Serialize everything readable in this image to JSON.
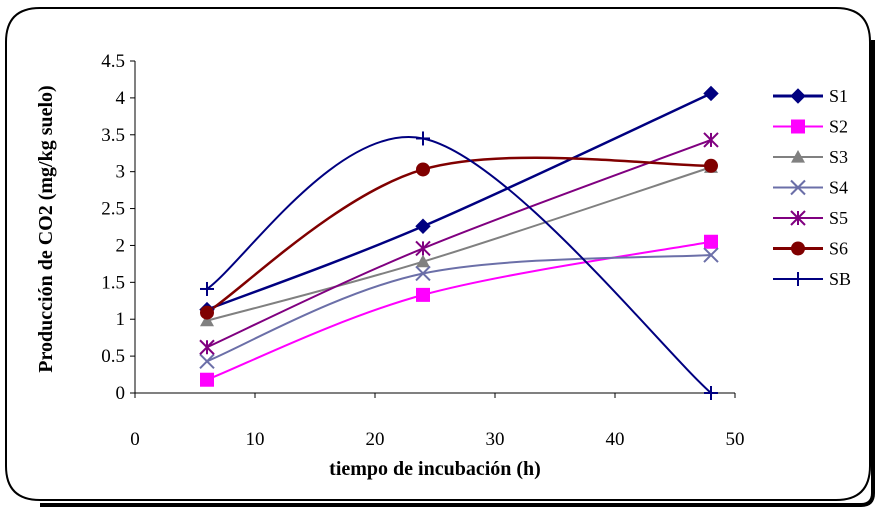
{
  "chart_data": {
    "type": "line",
    "title": "",
    "xlabel": "tiempo de incubación (h)",
    "ylabel": "Producción de CO2 (mg/kg suelo)",
    "xlim": [
      0,
      50
    ],
    "ylim": [
      0,
      4.5
    ],
    "xticks": [
      "0",
      "10",
      "20",
      "30",
      "40",
      "50"
    ],
    "yticks": [
      "0",
      "0.5",
      "1",
      "1.5",
      "2",
      "2.5",
      "3",
      "3.5",
      "4",
      "4.5"
    ],
    "grid": false,
    "smooth": true,
    "legend_position": "right",
    "x": [
      6,
      24,
      48
    ],
    "series": [
      {
        "name": "S1",
        "values": [
          1.13,
          2.26,
          4.06
        ],
        "color": "#000080",
        "marker": "diamond"
      },
      {
        "name": "S2",
        "values": [
          0.18,
          1.33,
          2.05
        ],
        "color": "#FF00FF",
        "marker": "square"
      },
      {
        "name": "S3",
        "values": [
          0.98,
          1.78,
          3.06
        ],
        "color": "#808080",
        "marker": "triangle"
      },
      {
        "name": "S4",
        "values": [
          0.43,
          1.62,
          1.87
        ],
        "color": "#6B6FA8",
        "marker": "x"
      },
      {
        "name": "S5",
        "values": [
          0.62,
          1.96,
          3.43
        ],
        "color": "#800080",
        "marker": "star"
      },
      {
        "name": "S6",
        "values": [
          1.09,
          3.03,
          3.08
        ],
        "color": "#800000",
        "marker": "circle"
      },
      {
        "name": "SB",
        "values": [
          1.41,
          3.45,
          0.0
        ],
        "color": "#000080",
        "marker": "plus"
      }
    ]
  }
}
